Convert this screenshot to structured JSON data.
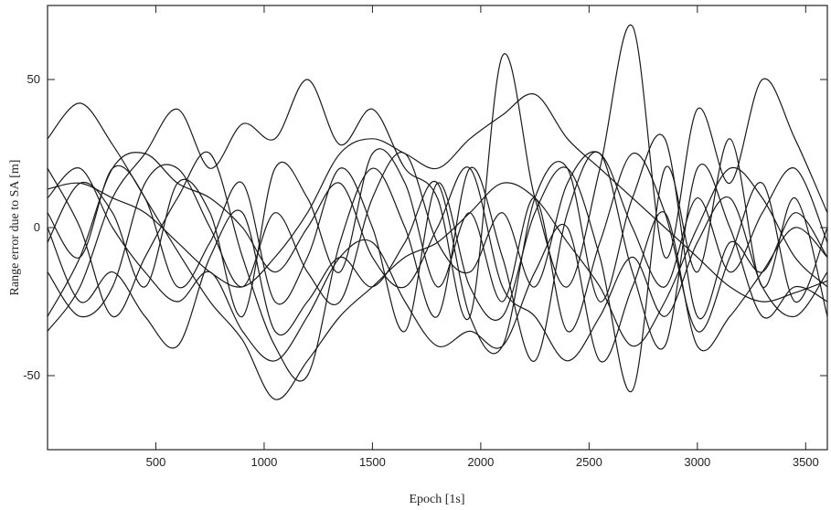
{
  "chart_data": {
    "type": "line",
    "title": "",
    "xlabel": "Epoch [1s]",
    "ylabel": "Range error due to SA [m]",
    "xlim": [
      0,
      3600
    ],
    "ylim": [
      -75,
      75
    ],
    "x_ticks": [
      500,
      1000,
      1500,
      2000,
      2500,
      3000,
      3500
    ],
    "y_ticks": [
      -50,
      0,
      50
    ],
    "x_tick_labels": [
      "500",
      "1000",
      "1500",
      "2000",
      "2500",
      "3000",
      "3500"
    ],
    "y_tick_labels": [
      "-50",
      "0",
      "50"
    ],
    "grid": false,
    "legend": "none",
    "line_color": "#1a1a1a",
    "x": [
      0,
      150,
      300,
      450,
      600,
      750,
      900,
      1050,
      1200,
      1350,
      1500,
      1650,
      1800,
      1950,
      2100,
      2250,
      2400,
      2550,
      2700,
      2850,
      3000,
      3150,
      3300,
      3450,
      3600
    ],
    "series": [
      {
        "values": [
          30,
          42,
          28,
          10,
          -8,
          -25,
          -38,
          -58,
          -45,
          -30,
          -20,
          -10,
          -5,
          5,
          15,
          10,
          -5,
          -20,
          -40,
          -25,
          0,
          20,
          10,
          -10,
          -20
        ]
      },
      {
        "values": [
          13,
          15,
          10,
          5,
          -5,
          -15,
          -20,
          -10,
          5,
          25,
          30,
          25,
          20,
          30,
          38,
          45,
          30,
          20,
          10,
          0,
          -10,
          -20,
          -25,
          -22,
          -18
        ]
      },
      {
        "values": [
          -35,
          -20,
          10,
          25,
          40,
          20,
          35,
          30,
          50,
          28,
          40,
          20,
          10,
          -30,
          58,
          10,
          -20,
          20,
          68,
          -10,
          40,
          15,
          50,
          30,
          5
        ]
      },
      {
        "values": [
          5,
          -10,
          20,
          10,
          -20,
          -5,
          15,
          -25,
          -10,
          20,
          0,
          -35,
          15,
          -20,
          -30,
          5,
          20,
          -10,
          -55,
          20,
          -15,
          30,
          -20,
          10,
          -30
        ]
      },
      {
        "values": [
          -15,
          -30,
          -20,
          15,
          20,
          0,
          -20,
          5,
          -15,
          -25,
          10,
          25,
          -5,
          -15,
          5,
          -20,
          15,
          25,
          0,
          -20,
          10,
          -15,
          5,
          20,
          -5
        ]
      },
      {
        "values": [
          0,
          -25,
          -15,
          -30,
          -40,
          -10,
          5,
          -35,
          -25,
          -10,
          -20,
          -5,
          15,
          -30,
          -40,
          10,
          20,
          -25,
          10,
          30,
          -30,
          -5,
          -15,
          5,
          -10
        ]
      },
      {
        "values": [
          20,
          0,
          -30,
          -10,
          10,
          25,
          -10,
          -40,
          -50,
          -5,
          20,
          0,
          -30,
          20,
          -10,
          -45,
          5,
          25,
          -15,
          -40,
          20,
          0,
          -30,
          -20,
          -25
        ]
      },
      {
        "values": [
          -5,
          15,
          5,
          -20,
          15,
          5,
          -30,
          20,
          10,
          -15,
          25,
          15,
          -20,
          5,
          -25,
          10,
          -35,
          -5,
          25,
          5,
          -35,
          -10,
          15,
          -25,
          0
        ]
      },
      {
        "values": [
          10,
          20,
          0,
          -15,
          -25,
          -15,
          -35,
          -45,
          -30,
          -10,
          -5,
          -25,
          -40,
          -35,
          -40,
          -15,
          0,
          -45,
          -20,
          5,
          -40,
          -30,
          -15,
          0,
          -10
        ]
      },
      {
        "values": [
          -30,
          -10,
          20,
          25,
          15,
          10,
          0,
          -15,
          0,
          15,
          -10,
          -20,
          0,
          20,
          -20,
          -30,
          -45,
          -30,
          -10,
          -30,
          -5,
          10,
          -20,
          -30,
          -15
        ]
      }
    ]
  }
}
